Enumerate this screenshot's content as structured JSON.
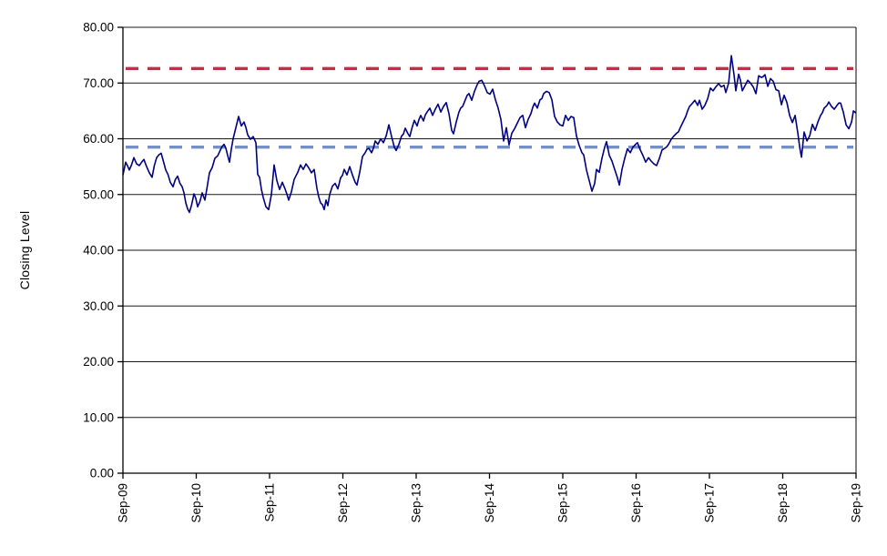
{
  "chart_data": {
    "type": "line",
    "title": "",
    "xlabel": "",
    "ylabel": "Closing Level",
    "ylim": [
      0,
      80
    ],
    "x_range_months": [
      0,
      120
    ],
    "grid": "horizontal",
    "legend": "none",
    "background": "#ffffff",
    "axis_color": "#000000",
    "gridline_color": "#1a1a1a",
    "y_tick_values": [
      0,
      10,
      20,
      30,
      40,
      50,
      60,
      70,
      80
    ],
    "y_tick_labels": [
      "0.00",
      "10.00",
      "20.00",
      "30.00",
      "40.00",
      "50.00",
      "60.00",
      "70.00",
      "80.00"
    ],
    "x_tick_labels": [
      "Sep-09",
      "Sep-10",
      "Sep-11",
      "Sep-12",
      "Sep-13",
      "Sep-14",
      "Sep-15",
      "Sep-16",
      "Sep-17",
      "Sep-18",
      "Sep-19"
    ],
    "series": [
      {
        "name": "closing-level",
        "color": "#000080",
        "style": "solid",
        "points": [
          [
            0,
            53.5
          ],
          [
            0.45,
            55.8
          ],
          [
            1.04,
            54.4
          ],
          [
            1.79,
            56.6
          ],
          [
            2.24,
            55.5
          ],
          [
            2.68,
            55.2
          ],
          [
            3.43,
            56.3
          ],
          [
            3.88,
            55
          ],
          [
            4.32,
            53.9
          ],
          [
            4.77,
            53.1
          ],
          [
            5.52,
            56.6
          ],
          [
            6.26,
            57.4
          ],
          [
            7.01,
            54.4
          ],
          [
            7.75,
            52.2
          ],
          [
            8.2,
            51.4
          ],
          [
            8.94,
            53.3
          ],
          [
            9.69,
            51.4
          ],
          [
            10.29,
            48.5
          ],
          [
            10.88,
            46.8
          ],
          [
            11.63,
            50.1
          ],
          [
            12.22,
            47.8
          ],
          [
            12.97,
            50.3
          ],
          [
            13.42,
            49
          ],
          [
            14.16,
            53.9
          ],
          [
            15.06,
            56.5
          ],
          [
            15.95,
            58
          ],
          [
            16.55,
            59
          ],
          [
            17.14,
            57
          ],
          [
            17.44,
            55.8
          ],
          [
            18.04,
            60
          ],
          [
            18.48,
            62
          ],
          [
            18.93,
            64
          ],
          [
            19.38,
            62.3
          ],
          [
            19.83,
            63
          ],
          [
            20.42,
            60.7
          ],
          [
            20.87,
            59.9
          ],
          [
            21.32,
            60.4
          ],
          [
            21.76,
            59.3
          ],
          [
            22.06,
            53.6
          ],
          [
            22.36,
            53.1
          ],
          [
            22.96,
            49.5
          ],
          [
            23.4,
            47.8
          ],
          [
            23.85,
            47.3
          ],
          [
            24.3,
            50
          ],
          [
            24.75,
            55.3
          ],
          [
            25.19,
            52.5
          ],
          [
            25.64,
            50.9
          ],
          [
            26.09,
            52.2
          ],
          [
            26.53,
            51
          ],
          [
            27.13,
            49
          ],
          [
            27.58,
            50.5
          ],
          [
            28.02,
            52.7
          ],
          [
            28.62,
            54
          ],
          [
            29.07,
            55.3
          ],
          [
            29.52,
            54.5
          ],
          [
            29.96,
            55.5
          ],
          [
            30.41,
            54.8
          ],
          [
            30.86,
            53.9
          ],
          [
            31.3,
            54.5
          ],
          [
            31.75,
            51.1
          ],
          [
            32.35,
            48.5
          ],
          [
            32.94,
            47.3
          ],
          [
            33.24,
            49
          ],
          [
            33.54,
            48
          ],
          [
            33.84,
            50
          ],
          [
            34.29,
            51.5
          ],
          [
            34.73,
            52
          ],
          [
            35.18,
            51
          ],
          [
            35.63,
            53
          ],
          [
            36.22,
            54.5
          ],
          [
            36.67,
            53.5
          ],
          [
            37.12,
            55
          ],
          [
            37.57,
            53.5
          ],
          [
            38.01,
            52.2
          ],
          [
            38.31,
            51.7
          ],
          [
            38.76,
            54
          ],
          [
            39.21,
            56.8
          ],
          [
            39.65,
            57.5
          ],
          [
            40.25,
            58.3
          ],
          [
            40.7,
            57.5
          ],
          [
            41.29,
            59.6
          ],
          [
            41.74,
            59
          ],
          [
            42.19,
            60
          ],
          [
            42.63,
            59.3
          ],
          [
            43.08,
            60.5
          ],
          [
            43.53,
            62.5
          ],
          [
            43.98,
            60.4
          ],
          [
            44.42,
            58.5
          ],
          [
            44.72,
            57.9
          ],
          [
            45.17,
            59
          ],
          [
            45.62,
            60.5
          ],
          [
            46.21,
            61.9
          ],
          [
            46.66,
            60.9
          ],
          [
            46.96,
            60.4
          ],
          [
            47.7,
            63.3
          ],
          [
            48.15,
            62.3
          ],
          [
            48.75,
            64.2
          ],
          [
            49.19,
            63.2
          ],
          [
            49.79,
            64.8
          ],
          [
            50.24,
            65.5
          ],
          [
            50.68,
            64.2
          ],
          [
            51.13,
            65.3
          ],
          [
            51.58,
            66.2
          ],
          [
            52.03,
            64.8
          ],
          [
            52.47,
            65.8
          ],
          [
            52.92,
            66.5
          ],
          [
            53.37,
            64.5
          ],
          [
            53.81,
            61.5
          ],
          [
            54.11,
            60.9
          ],
          [
            54.56,
            63
          ],
          [
            55.01,
            64.8
          ],
          [
            55.6,
            65.8
          ],
          [
            56.05,
            67
          ],
          [
            56.65,
            68.1
          ],
          [
            57.09,
            66.9
          ],
          [
            57.54,
            68.5
          ],
          [
            57.99,
            69.7
          ],
          [
            58.29,
            70.3
          ],
          [
            58.73,
            70.5
          ],
          [
            59.18,
            69.5
          ],
          [
            59.63,
            68.3
          ],
          [
            60.08,
            68
          ],
          [
            60.52,
            68.9
          ],
          [
            60.97,
            67
          ],
          [
            61.42,
            65.5
          ],
          [
            61.86,
            63.5
          ],
          [
            62.31,
            59.6
          ],
          [
            62.76,
            62
          ],
          [
            63.21,
            58.9
          ],
          [
            63.65,
            61
          ],
          [
            64.1,
            61.8
          ],
          [
            64.55,
            62.8
          ],
          [
            64.99,
            63.8
          ],
          [
            65.44,
            64.2
          ],
          [
            65.89,
            62
          ],
          [
            66.34,
            63.5
          ],
          [
            66.78,
            64.5
          ],
          [
            67.38,
            66.4
          ],
          [
            67.83,
            65.5
          ],
          [
            68.27,
            67
          ],
          [
            68.87,
            68.1
          ],
          [
            69.32,
            68.5
          ],
          [
            69.77,
            68.3
          ],
          [
            70.21,
            67
          ],
          [
            70.66,
            64
          ],
          [
            71.11,
            63
          ],
          [
            71.56,
            62.5
          ],
          [
            72,
            62.3
          ],
          [
            72.45,
            64.2
          ],
          [
            72.9,
            63.3
          ],
          [
            73.34,
            64
          ],
          [
            73.79,
            63.8
          ],
          [
            74.24,
            60.5
          ],
          [
            74.68,
            58.8
          ],
          [
            75.13,
            57.5
          ],
          [
            75.43,
            57.1
          ],
          [
            75.88,
            54.4
          ],
          [
            76.32,
            52.5
          ],
          [
            76.77,
            50.6
          ],
          [
            77.22,
            52
          ],
          [
            77.52,
            54.5
          ],
          [
            77.96,
            54
          ],
          [
            78.41,
            56.5
          ],
          [
            78.86,
            58.5
          ],
          [
            79.16,
            59.5
          ],
          [
            79.61,
            57
          ],
          [
            80.05,
            56
          ],
          [
            80.5,
            54.5
          ],
          [
            80.95,
            53
          ],
          [
            81.25,
            51.7
          ],
          [
            81.69,
            54.5
          ],
          [
            82.14,
            56.5
          ],
          [
            82.59,
            58.2
          ],
          [
            83.04,
            57.5
          ],
          [
            83.48,
            58.5
          ],
          [
            83.93,
            59
          ],
          [
            84.23,
            59.3
          ],
          [
            84.68,
            58
          ],
          [
            85.12,
            57
          ],
          [
            85.57,
            55.8
          ],
          [
            86.02,
            56.6
          ],
          [
            86.46,
            56
          ],
          [
            86.91,
            55.5
          ],
          [
            87.36,
            55.2
          ],
          [
            87.81,
            56.5
          ],
          [
            88.25,
            58
          ],
          [
            88.7,
            58.3
          ],
          [
            89.3,
            59
          ],
          [
            89.74,
            59.9
          ],
          [
            90.19,
            60.5
          ],
          [
            90.64,
            61
          ],
          [
            91.23,
            62
          ],
          [
            91.68,
            63
          ],
          [
            92.13,
            64
          ],
          [
            92.73,
            65.8
          ],
          [
            93.17,
            66.3
          ],
          [
            93.62,
            66.9
          ],
          [
            94.07,
            66
          ],
          [
            94.37,
            66.9
          ],
          [
            94.81,
            65.3
          ],
          [
            95.26,
            66
          ],
          [
            95.71,
            67.2
          ],
          [
            96.16,
            69.1
          ],
          [
            96.6,
            68.6
          ],
          [
            97.05,
            69.3
          ],
          [
            97.5,
            69.9
          ],
          [
            97.94,
            69.3
          ],
          [
            98.39,
            69.6
          ],
          [
            98.69,
            68.3
          ],
          [
            99.14,
            70
          ],
          [
            99.59,
            74.9
          ],
          [
            100.03,
            71.5
          ],
          [
            100.33,
            68.6
          ],
          [
            100.78,
            71.6
          ],
          [
            101.08,
            70.5
          ],
          [
            101.38,
            68.6
          ],
          [
            101.82,
            69.5
          ],
          [
            102.27,
            70.5
          ],
          [
            102.72,
            70
          ],
          [
            103.17,
            69.3
          ],
          [
            103.61,
            68.1
          ],
          [
            104.06,
            71.3
          ],
          [
            104.51,
            71
          ],
          [
            105.1,
            71.5
          ],
          [
            105.55,
            69.4
          ],
          [
            106,
            70.8
          ],
          [
            106.45,
            70.3
          ],
          [
            106.89,
            68.8
          ],
          [
            107.34,
            68.6
          ],
          [
            107.79,
            66.1
          ],
          [
            108.23,
            67.8
          ],
          [
            108.68,
            66.5
          ],
          [
            109.13,
            64.2
          ],
          [
            109.58,
            62.9
          ],
          [
            110.02,
            64.2
          ],
          [
            110.47,
            61
          ],
          [
            110.77,
            58.5
          ],
          [
            111.07,
            56.7
          ],
          [
            111.51,
            61.2
          ],
          [
            111.96,
            59.6
          ],
          [
            112.41,
            60.5
          ],
          [
            112.86,
            62.6
          ],
          [
            113.3,
            61.5
          ],
          [
            113.75,
            63
          ],
          [
            114.2,
            64.2
          ],
          [
            114.79,
            65.5
          ],
          [
            115.24,
            66
          ],
          [
            115.54,
            66.6
          ],
          [
            115.99,
            65.8
          ],
          [
            116.43,
            65.3
          ],
          [
            116.88,
            66
          ],
          [
            117.48,
            66.4
          ],
          [
            117.92,
            64.8
          ],
          [
            118.37,
            62.5
          ],
          [
            118.82,
            61.8
          ],
          [
            119.27,
            63
          ],
          [
            119.57,
            65
          ],
          [
            120,
            64.6
          ]
        ]
      },
      {
        "name": "upper-reference-line",
        "color": "#b03a44",
        "style": "dashed",
        "value": 72.6
      },
      {
        "name": "lower-reference-line",
        "color": "#7490c5",
        "style": "dashed",
        "value": 58.5
      }
    ]
  }
}
